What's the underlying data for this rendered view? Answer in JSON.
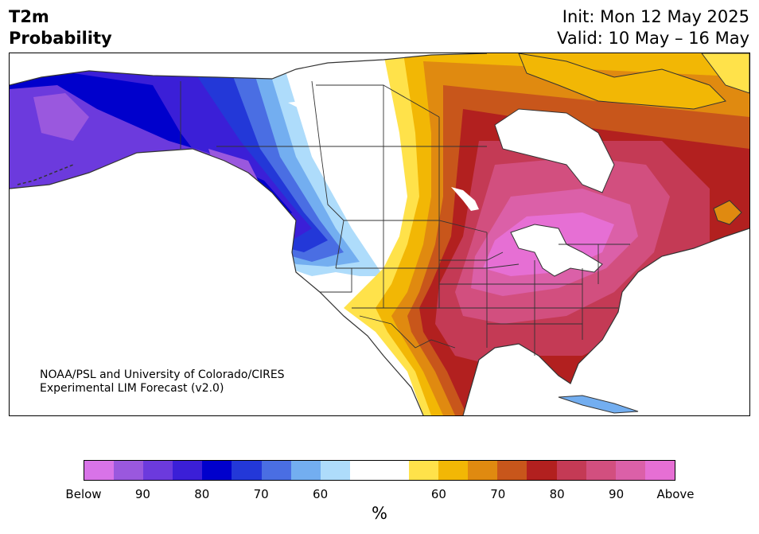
{
  "header": {
    "title_line1": "T2m",
    "title_line2": "Probability",
    "init_text": "Init: Mon 12 May 2025",
    "valid_text": "Valid: 10 May – 16 May"
  },
  "credit": {
    "line1": "NOAA/PSL and University of Colorado/CIRES",
    "line2": "Experimental LIM Forecast (v2.0)"
  },
  "colorbar": {
    "colors": [
      "#d873e8",
      "#9a58de",
      "#6c3add",
      "#3b1fd7",
      "#0000cc",
      "#2338d8",
      "#4a6ee3",
      "#73aef0",
      "#aedcfb",
      "#ffffff",
      "#ffffff",
      "#ffe24a",
      "#f2b705",
      "#e08a10",
      "#c8561b",
      "#b2201f",
      "#c43a55",
      "#d24f7f",
      "#db60a8",
      "#e66fd4"
    ],
    "tick_labels": [
      "Below",
      "90",
      "80",
      "70",
      "60",
      "60",
      "70",
      "80",
      "90",
      "Above"
    ],
    "unit": "%"
  },
  "map": {
    "region": "North America",
    "variable": "2m temperature probability",
    "pattern_west": "below-normal (blue/purple) over Alaska, western Canada, Pacific Northwest",
    "pattern_east": "above-normal (orange/red/pink) over central and eastern U.S. and Canada"
  }
}
